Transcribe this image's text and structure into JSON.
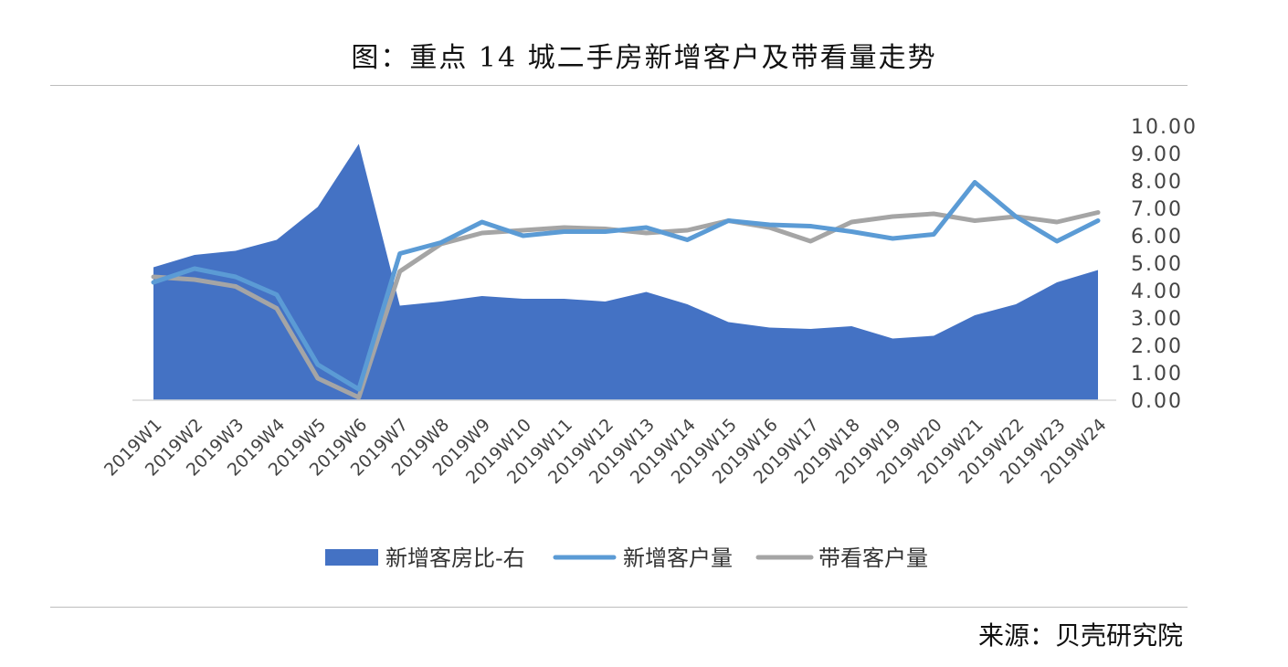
{
  "title": "图：重点 14 城二手房新增客户及带看量走势",
  "source": "来源：贝壳研究院",
  "colors": {
    "area": "#4472C4",
    "line_new_clients": "#5B9BD5",
    "line_viewings": "#A5A5A5",
    "axis": "#d9d9d9"
  },
  "chart_data": {
    "type": "area",
    "categories": [
      "2019W1",
      "2019W2",
      "2019W3",
      "2019W4",
      "2019W5",
      "2019W6",
      "2019W7",
      "2019W8",
      "2019W9",
      "2019W10",
      "2019W11",
      "2019W12",
      "2019W13",
      "2019W14",
      "2019W15",
      "2019W16",
      "2019W17",
      "2019W18",
      "2019W19",
      "2019W20",
      "2019W21",
      "2019W22",
      "2019W23",
      "2019W24"
    ],
    "series": [
      {
        "name": "新增客房比-右",
        "type": "area",
        "axis": "right",
        "values": [
          4.85,
          5.3,
          5.45,
          5.85,
          7.05,
          9.35,
          3.45,
          3.6,
          3.8,
          3.7,
          3.7,
          3.6,
          3.95,
          3.5,
          2.85,
          2.65,
          2.6,
          2.7,
          2.25,
          2.35,
          3.1,
          3.5,
          4.3,
          4.75
        ]
      },
      {
        "name": "新增客户量",
        "type": "line",
        "values": [
          4.3,
          4.8,
          4.5,
          3.85,
          1.3,
          0.4,
          5.35,
          5.75,
          6.5,
          6.0,
          6.15,
          6.15,
          6.3,
          5.85,
          6.55,
          6.4,
          6.35,
          6.15,
          5.9,
          6.05,
          7.95,
          6.7,
          5.8,
          6.55
        ]
      },
      {
        "name": "带看客户量",
        "type": "line",
        "values": [
          4.5,
          4.4,
          4.15,
          3.35,
          0.8,
          0.1,
          4.7,
          5.7,
          6.1,
          6.2,
          6.3,
          6.25,
          6.1,
          6.2,
          6.55,
          6.3,
          5.8,
          6.5,
          6.7,
          6.8,
          6.55,
          6.7,
          6.5,
          6.85
        ]
      }
    ],
    "y_axis": {
      "position": "right",
      "ylim": [
        0,
        10
      ],
      "ticks": [
        "0.00",
        "1.00",
        "2.00",
        "3.00",
        "4.00",
        "5.00",
        "6.00",
        "7.00",
        "8.00",
        "9.00",
        "10.00"
      ]
    },
    "grid": false,
    "legend": "bottom"
  }
}
